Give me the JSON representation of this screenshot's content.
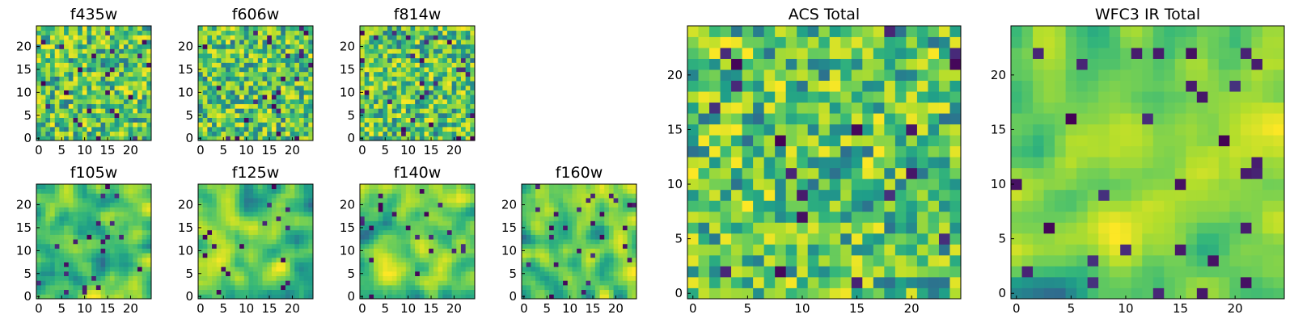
{
  "figure": {},
  "chart_data": [
    {
      "type": "heatmap",
      "title": "f435w",
      "grid_size": 25,
      "xlim": [
        -0.5,
        24.5
      ],
      "ylim": [
        -0.5,
        24.5
      ],
      "xticks": [
        0,
        5,
        10,
        15,
        20
      ],
      "yticks": [
        0,
        5,
        10,
        15,
        20
      ],
      "colormap": "viridis",
      "seed": 11,
      "smooth": 0,
      "vmin": 0,
      "vmax": 1
    },
    {
      "type": "heatmap",
      "title": "f606w",
      "grid_size": 25,
      "xlim": [
        -0.5,
        24.5
      ],
      "ylim": [
        -0.5,
        24.5
      ],
      "xticks": [
        0,
        5,
        10,
        15,
        20
      ],
      "yticks": [
        0,
        5,
        10,
        15,
        20
      ],
      "colormap": "viridis",
      "seed": 23,
      "smooth": 0,
      "vmin": 0,
      "vmax": 1
    },
    {
      "type": "heatmap",
      "title": "f814w",
      "grid_size": 25,
      "xlim": [
        -0.5,
        24.5
      ],
      "ylim": [
        -0.5,
        24.5
      ],
      "xticks": [
        0,
        5,
        10,
        15,
        20
      ],
      "yticks": [
        0,
        5,
        10,
        15,
        20
      ],
      "colormap": "viridis",
      "seed": 37,
      "smooth": 0,
      "vmin": 0,
      "vmax": 1
    },
    {
      "type": "heatmap",
      "title": "f105w",
      "grid_size": 25,
      "xlim": [
        -0.5,
        24.5
      ],
      "ylim": [
        -0.5,
        24.5
      ],
      "xticks": [
        0,
        5,
        10,
        15,
        20
      ],
      "yticks": [
        0,
        5,
        10,
        15,
        20
      ],
      "colormap": "viridis",
      "seed": 41,
      "smooth": 1,
      "vmin": 0,
      "vmax": 1
    },
    {
      "type": "heatmap",
      "title": "f125w",
      "grid_size": 25,
      "xlim": [
        -0.5,
        24.5
      ],
      "ylim": [
        -0.5,
        24.5
      ],
      "xticks": [
        0,
        5,
        10,
        15,
        20
      ],
      "yticks": [
        0,
        5,
        10,
        15,
        20
      ],
      "colormap": "viridis",
      "seed": 53,
      "smooth": 1,
      "vmin": 0,
      "vmax": 1
    },
    {
      "type": "heatmap",
      "title": "f140w",
      "grid_size": 25,
      "xlim": [
        -0.5,
        24.5
      ],
      "ylim": [
        -0.5,
        24.5
      ],
      "xticks": [
        0,
        5,
        10,
        15,
        20
      ],
      "yticks": [
        0,
        5,
        10,
        15,
        20
      ],
      "colormap": "viridis",
      "seed": 67,
      "smooth": 1,
      "vmin": 0,
      "vmax": 1
    },
    {
      "type": "heatmap",
      "title": "f160w",
      "grid_size": 25,
      "xlim": [
        -0.5,
        24.5
      ],
      "ylim": [
        -0.5,
        24.5
      ],
      "xticks": [
        0,
        5,
        10,
        15,
        20
      ],
      "yticks": [
        0,
        5,
        10,
        15,
        20
      ],
      "colormap": "viridis",
      "seed": 79,
      "smooth": 1,
      "vmin": 0,
      "vmax": 1
    },
    {
      "type": "heatmap",
      "title": "ACS Total",
      "grid_size": 25,
      "xlim": [
        -0.5,
        24.5
      ],
      "ylim": [
        -0.5,
        24.5
      ],
      "xticks": [
        0,
        5,
        10,
        15,
        20
      ],
      "yticks": [
        0,
        5,
        10,
        15,
        20
      ],
      "colormap": "viridis",
      "seed": 83,
      "smooth": 0,
      "vmin": 0,
      "vmax": 1
    },
    {
      "type": "heatmap",
      "title": "WFC3 IR Total",
      "grid_size": 25,
      "xlim": [
        -0.5,
        24.5
      ],
      "ylim": [
        -0.5,
        24.5
      ],
      "xticks": [
        0,
        5,
        10,
        15,
        20
      ],
      "yticks": [
        0,
        5,
        10,
        15,
        20
      ],
      "colormap": "viridis",
      "seed": 97,
      "smooth": 1,
      "vmin": 0,
      "vmax": 1
    }
  ]
}
